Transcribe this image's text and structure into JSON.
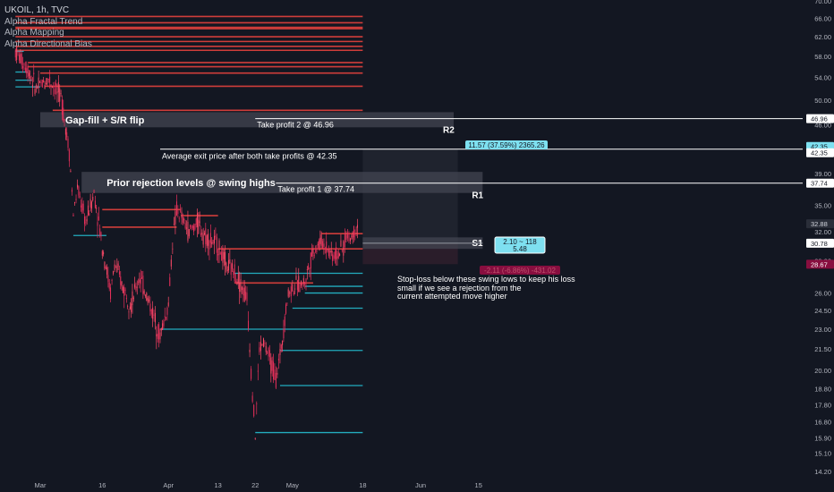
{
  "legend": {
    "symbol": "UKOIL, 1h, TVC",
    "indicators": [
      "Alpha Fractal Trend",
      "Alpha Mapping",
      "Alpha Directional Bias"
    ]
  },
  "colors": {
    "background": "#131722",
    "bull_candle": "#ff4a68",
    "bear_candle": "#e8305b",
    "resistance_line": "#f0443f",
    "support_line": "#26c6da",
    "zone": "#434651",
    "target_box": "#2a2e39",
    "label_cyan": "#7ee0f0",
    "label_red": "#880e3f"
  },
  "chart_data": {
    "type": "candlestick",
    "symbol": "UKOIL",
    "interval": "1h",
    "source": "TVC",
    "y_axis": {
      "min": 14.2,
      "max": 70.0,
      "scale": "log",
      "ticks": [
        70.0,
        66.0,
        62.0,
        58.0,
        54.0,
        50.0,
        46.0,
        42.0,
        39.0,
        35.0,
        32.0,
        29.0,
        26.0,
        24.5,
        23.0,
        21.5,
        20.0,
        18.8,
        17.8,
        16.8,
        15.9,
        15.1,
        14.2
      ],
      "tick_labels": [
        "70.00",
        "66.00",
        "62.00",
        "58.00",
        "54.00",
        "50.00",
        "46.00",
        "42.00",
        "39.00",
        "35.00",
        "32.00",
        "29.00",
        "26.00",
        "24.50",
        "23.00",
        "21.50",
        "20.00",
        "18.80",
        "17.80",
        "16.80",
        "15.90",
        "15.10",
        "14.20"
      ]
    },
    "x_axis": {
      "labels": [
        "Mar",
        "16",
        "Apr",
        "13",
        "22",
        "May",
        "18",
        "Jun",
        "15"
      ],
      "dates": [
        "2020-03-01",
        "2020-03-16",
        "2020-04-01",
        "2020-04-13",
        "2020-04-22",
        "2020-05-01",
        "2020-05-18",
        "2020-06-01",
        "2020-06-15"
      ]
    },
    "price_tags": [
      {
        "value": 46.96,
        "label": "46.96",
        "style": "white"
      },
      {
        "value": 42.35,
        "label": "42.35",
        "style": "cyan"
      },
      {
        "value": 42.35,
        "label": "42.35",
        "style": "white"
      },
      {
        "value": 37.74,
        "label": "37.74",
        "style": "white"
      },
      {
        "value": 32.88,
        "label": "32.88",
        "style": "dark"
      },
      {
        "value": 30.78,
        "label": "30.78",
        "style": "white"
      },
      {
        "value": 28.67,
        "label": "28.67",
        "style": "red"
      }
    ],
    "price_path": [
      [
        "2020-02-24",
        59.0
      ],
      [
        "2020-02-27",
        55.5
      ],
      [
        "2020-02-29",
        52.0
      ],
      [
        "2020-03-03",
        53.8
      ],
      [
        "2020-03-06",
        50.5
      ],
      [
        "2020-03-08",
        42.0
      ],
      [
        "2020-03-09",
        34.0
      ],
      [
        "2020-03-10",
        37.0
      ],
      [
        "2020-03-12",
        33.0
      ],
      [
        "2020-03-14",
        36.5
      ],
      [
        "2020-03-16",
        30.5
      ],
      [
        "2020-03-18",
        26.0
      ],
      [
        "2020-03-19",
        28.7
      ],
      [
        "2020-03-21",
        26.5
      ],
      [
        "2020-03-23",
        25.0
      ],
      [
        "2020-03-25",
        27.5
      ],
      [
        "2020-03-27",
        25.5
      ],
      [
        "2020-03-30",
        22.5
      ],
      [
        "2020-04-01",
        25.0
      ],
      [
        "2020-04-02",
        31.0
      ],
      [
        "2020-04-03",
        34.5
      ],
      [
        "2020-04-06",
        32.0
      ],
      [
        "2020-04-08",
        33.0
      ],
      [
        "2020-04-10",
        31.5
      ],
      [
        "2020-04-13",
        30.5
      ],
      [
        "2020-04-15",
        28.5
      ],
      [
        "2020-04-17",
        28.0
      ],
      [
        "2020-04-20",
        25.5
      ],
      [
        "2020-04-21",
        20.0
      ],
      [
        "2020-04-22",
        16.0
      ],
      [
        "2020-04-23",
        21.5
      ],
      [
        "2020-04-24",
        22.0
      ],
      [
        "2020-04-27",
        19.5
      ],
      [
        "2020-04-28",
        21.0
      ],
      [
        "2020-04-30",
        26.0
      ],
      [
        "2020-05-01",
        26.5
      ],
      [
        "2020-05-04",
        27.0
      ],
      [
        "2020-05-06",
        30.0
      ],
      [
        "2020-05-08",
        31.0
      ],
      [
        "2020-05-11",
        29.5
      ],
      [
        "2020-05-13",
        30.0
      ],
      [
        "2020-05-14",
        31.5
      ],
      [
        "2020-05-15",
        31.3
      ],
      [
        "2020-05-17",
        33.0
      ]
    ],
    "resistance_lines": [
      {
        "value": 66.4,
        "x0": "2020-02-24",
        "x1": "2020-05-18"
      },
      {
        "value": 65.0,
        "x0": "2020-02-24",
        "x1": "2020-05-18"
      },
      {
        "value": 64.0,
        "x0": "2020-02-24",
        "x1": "2020-05-18"
      },
      {
        "value": 63.7,
        "x0": "2020-02-24",
        "x1": "2020-05-18"
      },
      {
        "value": 62.0,
        "x0": "2020-02-24",
        "x1": "2020-05-18"
      },
      {
        "value": 61.0,
        "x0": "2020-02-24",
        "x1": "2020-05-18"
      },
      {
        "value": 60.0,
        "x0": "2020-02-24",
        "x1": "2020-05-18"
      },
      {
        "value": 59.2,
        "x0": "2020-02-24",
        "x1": "2020-05-18"
      },
      {
        "value": 56.8,
        "x0": "2020-02-27",
        "x1": "2020-05-18"
      },
      {
        "value": 56.0,
        "x0": "2020-02-27",
        "x1": "2020-05-18"
      },
      {
        "value": 54.8,
        "x0": "2020-03-01",
        "x1": "2020-05-18"
      },
      {
        "value": 52.4,
        "x0": "2020-03-02",
        "x1": "2020-05-18"
      },
      {
        "value": 48.3,
        "x0": "2020-03-04",
        "x1": "2020-05-18"
      },
      {
        "value": 34.5,
        "x0": "2020-03-16",
        "x1": "2020-04-04"
      },
      {
        "value": 32.5,
        "x0": "2020-03-16",
        "x1": "2020-04-03"
      },
      {
        "value": 33.8,
        "x0": "2020-04-04",
        "x1": "2020-04-13"
      },
      {
        "value": 30.2,
        "x0": "2020-04-13",
        "x1": "2020-05-18"
      },
      {
        "value": 31.8,
        "x0": "2020-05-08",
        "x1": "2020-05-18"
      },
      {
        "value": 26.9,
        "x0": "2020-04-17",
        "x1": "2020-05-06"
      }
    ],
    "support_lines": [
      {
        "value": 59.0,
        "x0": "2020-02-24",
        "x1": "2020-02-26"
      },
      {
        "value": 55.0,
        "x0": "2020-02-24",
        "x1": "2020-02-27"
      },
      {
        "value": 53.5,
        "x0": "2020-02-24",
        "x1": "2020-02-28"
      },
      {
        "value": 52.3,
        "x0": "2020-02-24",
        "x1": "2020-03-01"
      },
      {
        "value": 31.6,
        "x0": "2020-03-09",
        "x1": "2020-03-17"
      },
      {
        "value": 27.8,
        "x0": "2020-04-17",
        "x1": "2020-05-18"
      },
      {
        "value": 26.6,
        "x0": "2020-05-04",
        "x1": "2020-05-18"
      },
      {
        "value": 26.0,
        "x0": "2020-05-04",
        "x1": "2020-05-18"
      },
      {
        "value": 24.7,
        "x0": "2020-05-01",
        "x1": "2020-05-18"
      },
      {
        "value": 23.0,
        "x0": "2020-03-30",
        "x1": "2020-05-18"
      },
      {
        "value": 21.4,
        "x0": "2020-04-28",
        "x1": "2020-05-18"
      },
      {
        "value": 19.0,
        "x0": "2020-04-28",
        "x1": "2020-05-18"
      },
      {
        "value": 16.2,
        "x0": "2020-04-22",
        "x1": "2020-05-18"
      }
    ],
    "zones": [
      {
        "label": "Gap-fill + S/R flip",
        "top": 48.0,
        "bottom": 45.6,
        "x0": "2020-03-01",
        "x1": "2020-06-09",
        "tag": "R2"
      },
      {
        "label": "Prior rejection levels @ swing highs",
        "top": 39.2,
        "bottom": 36.5,
        "x0": "2020-03-11",
        "x1": "2020-06-16",
        "tag": "R1"
      },
      {
        "label": "",
        "top": 31.4,
        "bottom": 30.2,
        "x0": "2020-05-18",
        "x1": "2020-06-16",
        "tag": "S1"
      }
    ],
    "annotations": [
      {
        "text": "Take profit 2 @ 46.96",
        "value": 46.96,
        "x0": "2020-04-22",
        "x1": "2020-07-01"
      },
      {
        "text": "Average exit price after both take profits @ 42.35",
        "value": 42.35,
        "x0": "2020-03-30",
        "x1": "2020-07-01"
      },
      {
        "text": "Take profit 1 @ 37.74",
        "value": 37.74,
        "x0": "2020-04-27",
        "x1": "2020-07-01"
      }
    ],
    "position": {
      "entry": 30.78,
      "target": 42.35,
      "stop": 28.67,
      "entry_label_top": "2.10 ~ 118",
      "entry_label_bottom": "5.48",
      "profit_label": "11.57 (37.59%) 2365.26",
      "loss_label": "-2.11 (-6.86%) -431.02",
      "x0": "2020-05-18",
      "x1": "2020-06-10"
    },
    "note": "Stop-loss below these swing lows to keep his loss small if we see a rejection from the current attempted move higher",
    "note_lines": [
      "Stop-loss below these swing lows to keep his loss",
      "small if we see a rejection from the",
      "current attempted move higher"
    ],
    "grid": false
  }
}
